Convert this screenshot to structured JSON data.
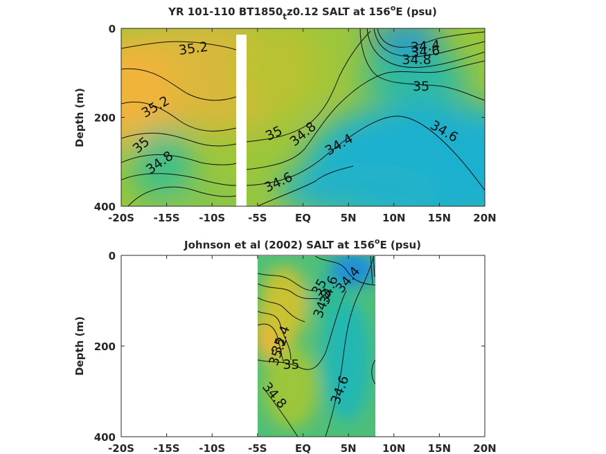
{
  "chart_data": [
    {
      "type": "heatmap",
      "title_main": "YR 101-110 BT1850",
      "title_sub": "t",
      "title_rest": "z0.12 SALT at 156",
      "title_sup": "o",
      "title_end": "E (psu)",
      "ylabel": "Depth (m)",
      "xticks": [
        "-20S",
        "-15S",
        "-10S",
        "-5S",
        "EQ",
        "5N",
        "10N",
        "15N",
        "20N"
      ],
      "xtick_values": [
        -20,
        -15,
        -10,
        -5,
        0,
        5,
        10,
        15,
        20
      ],
      "yticks": [
        "0",
        "200",
        "400"
      ],
      "ytick_values": [
        0,
        200,
        400
      ],
      "xlim": [
        -20,
        20
      ],
      "ylim": [
        0,
        400
      ],
      "y_reversed": true,
      "colormap": "parula",
      "color_range_psu": [
        34.2,
        35.4
      ],
      "gap_lat_range": [
        -7.5,
        -6.3
      ],
      "contour_labels": [
        {
          "text": "35.2",
          "lat": -12,
          "depth": 55
        },
        {
          "text": "35.2",
          "lat": -16,
          "depth": 185
        },
        {
          "text": "35",
          "lat": -17.5,
          "depth": 270
        },
        {
          "text": "34.8",
          "lat": -15.5,
          "depth": 310
        },
        {
          "text": "35",
          "lat": -3,
          "depth": 245
        },
        {
          "text": "34.8",
          "lat": 0.3,
          "depth": 245
        },
        {
          "text": "34.4",
          "lat": 4.2,
          "depth": 270
        },
        {
          "text": "34.6",
          "lat": -2.5,
          "depth": 355
        },
        {
          "text": "34.4",
          "lat": 13.5,
          "depth": 50
        },
        {
          "text": "34.6",
          "lat": 13.5,
          "depth": 62
        },
        {
          "text": "34.8",
          "lat": 12.5,
          "depth": 80
        },
        {
          "text": "35",
          "lat": 13,
          "depth": 140
        },
        {
          "text": "34.6",
          "lat": 15.3,
          "depth": 240
        }
      ]
    },
    {
      "type": "heatmap",
      "title_main": "Johnson et al (2002) SALT at 156",
      "title_sup": "o",
      "title_end": "E (psu)",
      "ylabel": "Depth (m)",
      "xticks": [
        "-20S",
        "-15S",
        "-10S",
        "-5S",
        "EQ",
        "5N",
        "10N",
        "15N",
        "20N"
      ],
      "xtick_values": [
        -20,
        -15,
        -10,
        -5,
        0,
        5,
        10,
        15,
        20
      ],
      "yticks": [
        "0",
        "200",
        "400"
      ],
      "ytick_values": [
        0,
        200,
        400
      ],
      "xlim": [
        -20,
        20
      ],
      "ylim": [
        0,
        400
      ],
      "y_reversed": true,
      "colormap": "parula",
      "color_range_psu": [
        34.2,
        35.4
      ],
      "data_lat_range": [
        -5,
        8
      ],
      "contour_labels": [
        {
          "text": "35.4",
          "lat": -2,
          "depth": 190
        },
        {
          "text": "35.2",
          "lat": -2.3,
          "depth": 215
        },
        {
          "text": "35",
          "lat": -1.3,
          "depth": 250
        },
        {
          "text": "34.8",
          "lat": -3.5,
          "depth": 315
        },
        {
          "text": "34.8",
          "lat": 2.6,
          "depth": 110
        },
        {
          "text": "34.6",
          "lat": 3.3,
          "depth": 80
        },
        {
          "text": "34.4",
          "lat": 5.3,
          "depth": 60
        },
        {
          "text": "35",
          "lat": 2.2,
          "depth": 75
        },
        {
          "text": "34.6",
          "lat": 4.5,
          "depth": 300
        }
      ]
    }
  ]
}
